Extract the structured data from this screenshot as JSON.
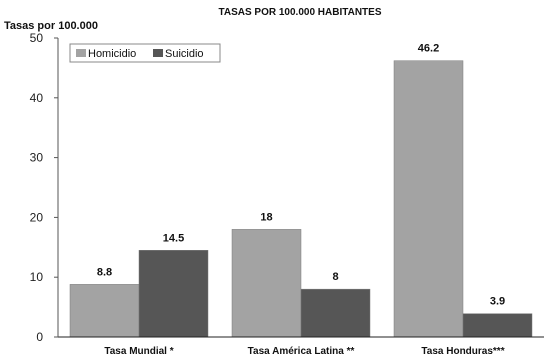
{
  "chart_data": {
    "type": "bar",
    "title": "TASAS POR 100.000 HABITANTES",
    "ylabel": "Tasas por 100.000",
    "xlabel": "",
    "categories": [
      "Tasa Mundial *",
      "Tasa América Latina **",
      "Tasa Honduras***"
    ],
    "series": [
      {
        "name": "Homicidio",
        "values": [
          8.8,
          18,
          46.2
        ],
        "color": "#a3a3a3"
      },
      {
        "name": "Suicidio",
        "values": [
          14.5,
          8,
          3.9
        ],
        "color": "#565656"
      }
    ],
    "data_labels": [
      [
        "8.8",
        "18",
        "46.2"
      ],
      [
        "14.5",
        "8",
        "3.9"
      ]
    ],
    "ylim": [
      0,
      50
    ],
    "yticks": [
      0,
      10,
      20,
      30,
      40,
      50
    ],
    "legend": "top-left",
    "grid": false
  }
}
